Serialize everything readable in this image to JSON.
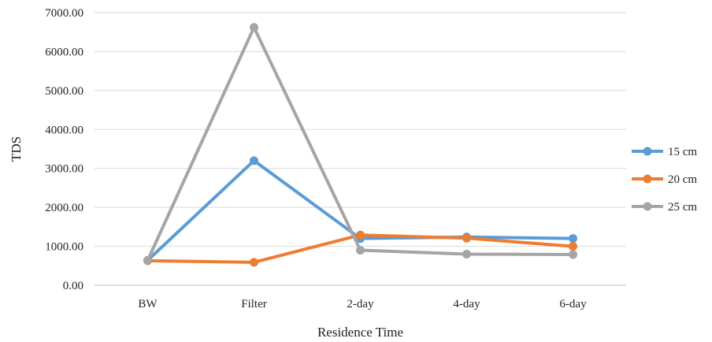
{
  "chart_data": {
    "type": "line",
    "title": "",
    "xlabel": "Residence Time",
    "ylabel": "TDS",
    "categories": [
      "BW",
      "Filter",
      "2-day",
      "4-day",
      "6-day"
    ],
    "ylim": [
      0,
      7000
    ],
    "yticks": [
      0,
      1000,
      2000,
      3000,
      4000,
      5000,
      6000,
      7000
    ],
    "ytick_labels": [
      "0.00",
      "1000.00",
      "2000.00",
      "3000.00",
      "4000.00",
      "5000.00",
      "6000.00",
      "7000.00"
    ],
    "grid": true,
    "legend_position": "right",
    "series": [
      {
        "name": "15 cm",
        "color": "#5b9bd5",
        "values": [
          640,
          3200,
          1200,
          1240,
          1200
        ]
      },
      {
        "name": "20 cm",
        "color": "#ed7d31",
        "values": [
          630,
          590,
          1290,
          1210,
          1000
        ]
      },
      {
        "name": "25 cm",
        "color": "#a5a5a5",
        "values": [
          640,
          6620,
          900,
          800,
          790
        ]
      }
    ]
  }
}
